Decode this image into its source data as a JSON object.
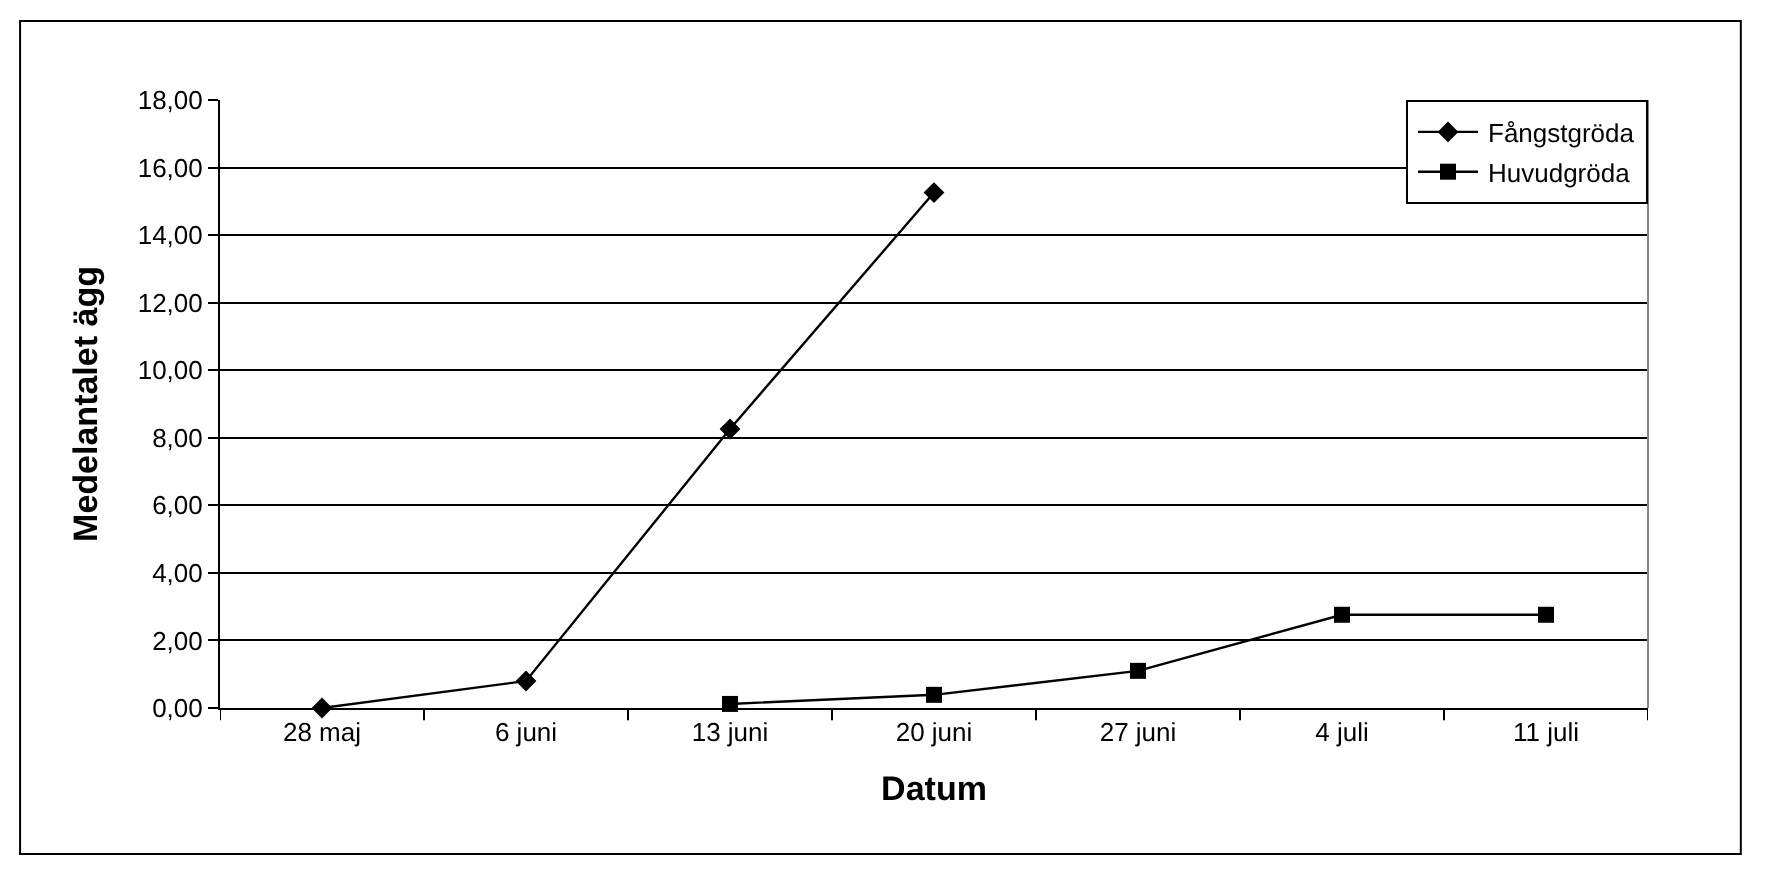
{
  "chart_data": {
    "type": "line",
    "xlabel": "Datum",
    "ylabel": "Medelantalet ägg",
    "categories": [
      "28 maj",
      "6 juni",
      "13 juni",
      "20 juni",
      "27 juni",
      "4 juli",
      "11 juli"
    ],
    "series": [
      {
        "name": "Fångstgröda",
        "color": "#000000",
        "marker": "diamond",
        "values": [
          0,
          0.8,
          8.26,
          15.26,
          null,
          null,
          null
        ]
      },
      {
        "name": "Huvudgröda",
        "color": "#000000",
        "marker": "square",
        "values": [
          null,
          null,
          0.12,
          0.39,
          1.1,
          2.76,
          2.76
        ]
      }
    ],
    "ylim": [
      0,
      18
    ],
    "yticks": [
      {
        "value": 0,
        "label": "0,00"
      },
      {
        "value": 2,
        "label": "2,00"
      },
      {
        "value": 4,
        "label": "4,00"
      },
      {
        "value": 6,
        "label": "6,00"
      },
      {
        "value": 8,
        "label": "8,00"
      },
      {
        "value": 10,
        "label": "10,00"
      },
      {
        "value": 12,
        "label": "12,00"
      },
      {
        "value": 14,
        "label": "14,00"
      },
      {
        "value": 16,
        "label": "16,00"
      },
      {
        "value": 18,
        "label": "18,00"
      }
    ],
    "grid": "y",
    "legend": "top right",
    "line_style": "solid"
  }
}
